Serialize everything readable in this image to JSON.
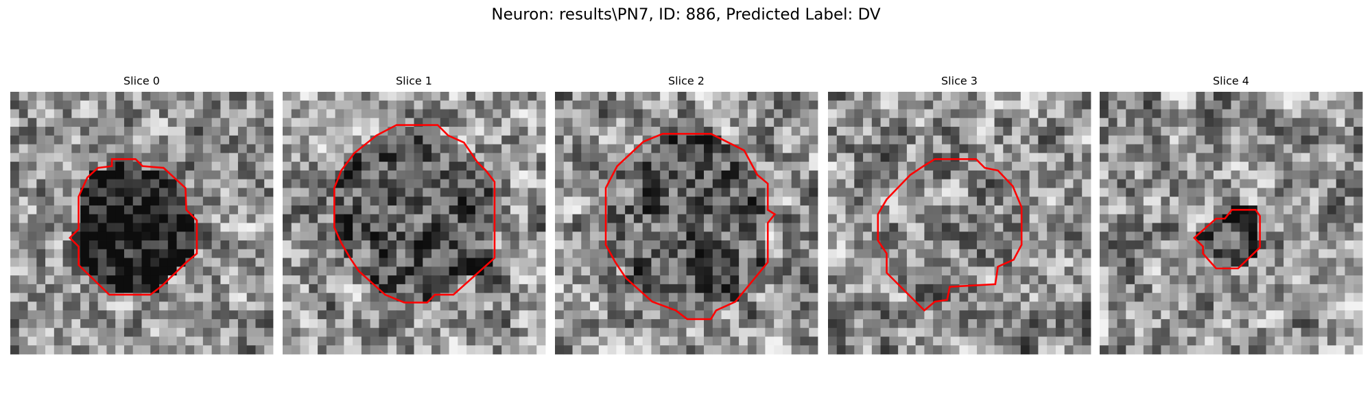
{
  "title": "Neuron: results\\PN7, ID: 886, Predicted Label: DV",
  "panels": [
    {
      "title": "Slice 0"
    },
    {
      "title": "Slice 1"
    },
    {
      "title": "Slice 2"
    },
    {
      "title": "Slice 3"
    },
    {
      "title": "Slice 4"
    }
  ]
}
